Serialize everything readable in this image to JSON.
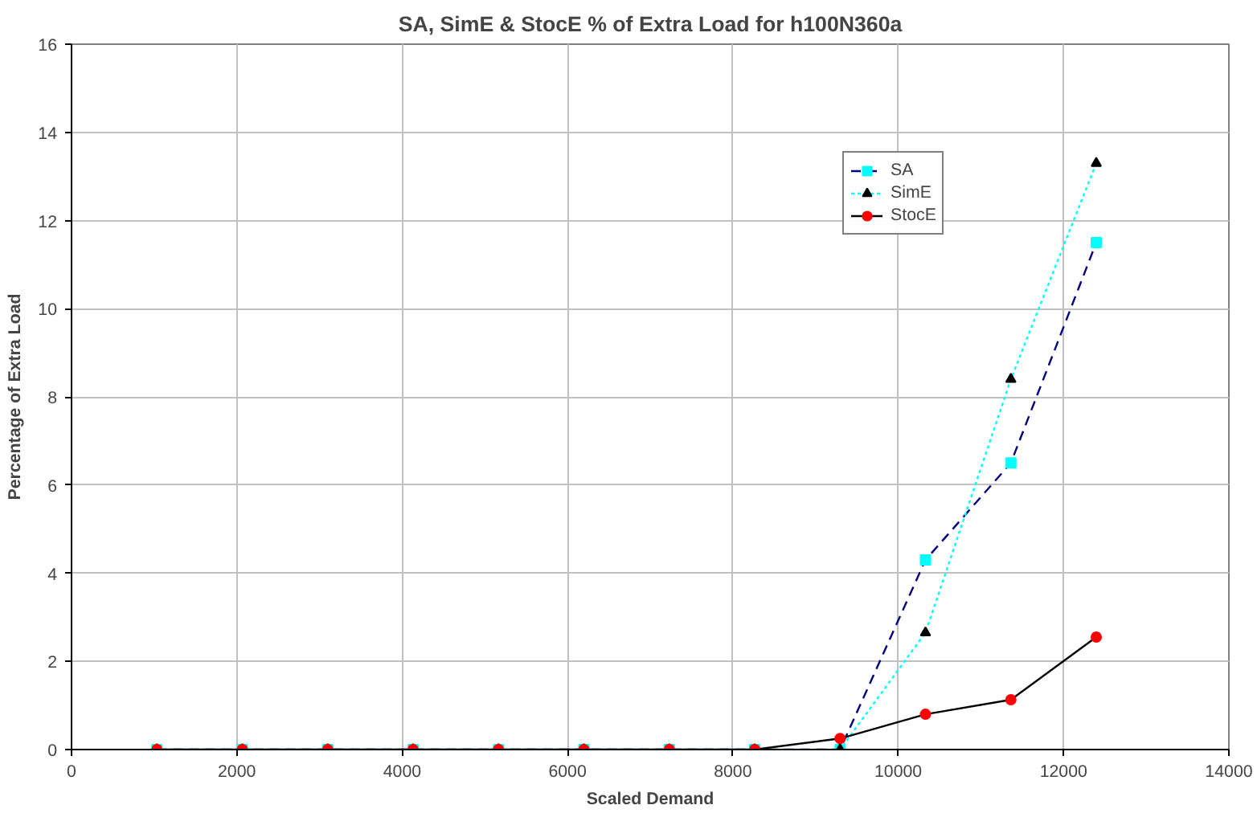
{
  "chart_data": {
    "type": "line",
    "title": "SA, SimE & StocE % of Extra Load for h100N360a",
    "xlabel": "Scaled Demand",
    "ylabel": "Percentage of Extra Load",
    "x": [
      1033,
      2066,
      3099,
      4132,
      5165,
      6198,
      7231,
      8264,
      9297,
      10330,
      11363,
      12396
    ],
    "series": [
      {
        "name": "SA",
        "color": "#000080",
        "colors": [
          "#00ffff",
          "#00ffff",
          "#00ffff",
          "#00ffff",
          "#00ffff",
          "#00ffff",
          "#00ffff",
          "#00ffff",
          "#00ffff",
          "#00ffff",
          "#00ffff",
          "#00ffff"
        ],
        "marker": "square",
        "line_style": "dashed",
        "values": [
          0,
          0,
          0,
          0,
          0,
          0,
          0,
          0,
          0,
          4.3,
          6.5,
          11.5
        ]
      },
      {
        "name": "SimE",
        "color": "#00ffff",
        "colors": [
          "#000000",
          "#000000",
          "#000000",
          "#000000",
          "#000000",
          "#000000",
          "#000000",
          "#000000",
          "#000000",
          "#000000",
          "#000000",
          "#000000"
        ],
        "marker": "triangle",
        "line_style": "dotted",
        "values": [
          0,
          0,
          0,
          0,
          0,
          0,
          0,
          0,
          0,
          2.65,
          8.4,
          13.3
        ]
      },
      {
        "name": "StocE",
        "color": "#000000",
        "colors": [
          "#ff0000",
          "#ff0000",
          "#ff0000",
          "#ff0000",
          "#ff0000",
          "#ff0000",
          "#ff0000",
          "#ff0000",
          "#ff0000",
          "#ff0000",
          "#ff0000",
          "#ff0000"
        ],
        "marker": "circle",
        "line_style": "solid",
        "values": [
          0,
          0,
          0,
          0,
          0,
          0,
          0,
          0,
          0.25,
          0.8,
          1.13,
          2.55
        ]
      }
    ],
    "xlim": [
      0,
      14000
    ],
    "xticks": [
      0,
      2000,
      4000,
      6000,
      8000,
      10000,
      12000,
      14000
    ],
    "ylim": [
      0,
      16
    ],
    "yticks": [
      0,
      2,
      4,
      6,
      8,
      10,
      12,
      14,
      16
    ],
    "grid": true,
    "legend": "top right"
  }
}
